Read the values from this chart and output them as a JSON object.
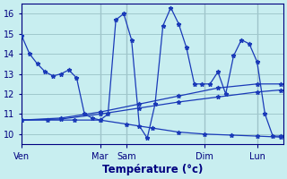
{
  "title": "Température (°c)",
  "background_color": "#c8eef0",
  "grid_color": "#a0c8cc",
  "line_color": "#1a3ab8",
  "ylim": [
    9.5,
    16.5
  ],
  "yticks": [
    10,
    11,
    12,
    13,
    14,
    15,
    16
  ],
  "day_labels": [
    "Ven",
    "",
    "",
    "Mar",
    "Sam",
    "",
    "",
    "Dim",
    "",
    "Lun"
  ],
  "day_x": [
    0,
    10,
    20,
    30,
    40,
    50,
    60,
    70,
    80,
    90
  ],
  "vlines": [
    0,
    30,
    40,
    70,
    90
  ],
  "vline_labels": [
    "Ven",
    "Mar",
    "Sam",
    "Dim",
    "Lun"
  ],
  "xlim": [
    0,
    100
  ],
  "series": [
    {
      "x": [
        0,
        3,
        6,
        9,
        12,
        15,
        18,
        21,
        24,
        27,
        30,
        33,
        36,
        39,
        42,
        45,
        48,
        51,
        54,
        57,
        60,
        63,
        66,
        69,
        72,
        75,
        78,
        81,
        84,
        87,
        90,
        93,
        96,
        99
      ],
      "y": [
        14.9,
        14.0,
        13.5,
        13.1,
        12.9,
        13.0,
        13.2,
        12.8,
        11.0,
        10.8,
        10.7,
        11.0,
        15.7,
        16.0,
        14.7,
        10.4,
        9.8,
        11.5,
        15.4,
        16.3,
        15.5,
        14.3,
        12.5,
        12.5,
        12.5,
        13.1,
        12.0,
        13.9,
        14.7,
        14.5,
        13.6,
        11.0,
        9.9,
        9.9
      ]
    },
    {
      "x": [
        0,
        15,
        30,
        45,
        60,
        75,
        90,
        99
      ],
      "y": [
        10.7,
        10.8,
        11.1,
        11.5,
        11.9,
        12.3,
        12.5,
        12.5
      ]
    },
    {
      "x": [
        0,
        15,
        30,
        45,
        60,
        75,
        90,
        99
      ],
      "y": [
        10.7,
        10.75,
        11.0,
        11.3,
        11.6,
        11.85,
        12.1,
        12.2
      ]
    },
    {
      "x": [
        0,
        10,
        20,
        30,
        40,
        50,
        60,
        70,
        80,
        90,
        99
      ],
      "y": [
        10.7,
        10.7,
        10.7,
        10.7,
        10.5,
        10.3,
        10.1,
        10.0,
        9.95,
        9.9,
        9.85
      ]
    }
  ]
}
